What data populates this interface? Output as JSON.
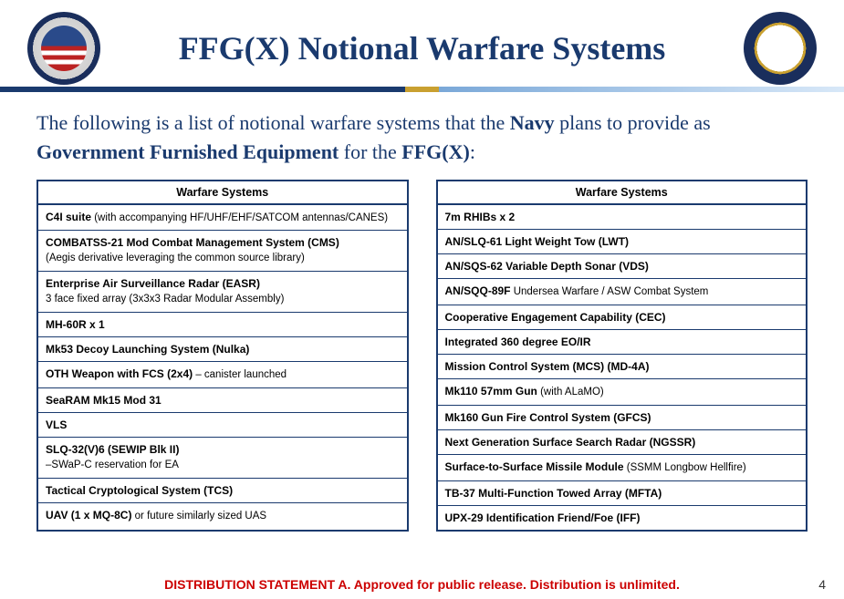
{
  "header": {
    "title": "FFG(X) Notional Warfare Systems",
    "left_seal": "PEO LCS",
    "right_seal": "PMS 515"
  },
  "intro": {
    "line1_prefix": "The following is a list of notional warfare systems that the ",
    "navy": "Navy",
    "line1_mid": " plans to provide as ",
    "gfe": "Government Furnished Equipment",
    "line1_mid2": " for the ",
    "ffgx": "FFG(X)",
    "line1_suffix": ":"
  },
  "left_table": {
    "header": "Warfare Systems",
    "rows": [
      {
        "bold": "C4I suite",
        "sub": " (with accompanying HF/UHF/EHF/SATCOM antennas/CANES)"
      },
      {
        "bold": "COMBATSS-21 Mod Combat Management System (CMS)",
        "sub_line2": "(Aegis derivative leveraging the common source library)"
      },
      {
        "bold": "Enterprise Air Surveillance Radar (EASR)",
        "sub_line2": "3 face fixed array (3x3x3 Radar Modular Assembly)"
      },
      {
        "bold": "MH-60R x 1"
      },
      {
        "bold": "Mk53 Decoy Launching System (Nulka)"
      },
      {
        "bold": "OTH Weapon with FCS (2x4)",
        "sub": " – canister launched"
      },
      {
        "bold": "SeaRAM Mk15 Mod 31"
      },
      {
        "bold": "VLS"
      },
      {
        "bold": "SLQ-32(V)6 (SEWIP Blk II)",
        "sub_line2": "–SWaP-C reservation for EA"
      },
      {
        "bold": "Tactical Cryptological System (TCS)"
      },
      {
        "bold": "UAV (1 x MQ-8C)",
        "sub": " or future similarly sized UAS"
      }
    ]
  },
  "right_table": {
    "header": "Warfare Systems",
    "rows": [
      {
        "bold": "7m RHIBs x 2"
      },
      {
        "bold": "AN/SLQ-61 Light Weight Tow (LWT)"
      },
      {
        "bold": "AN/SQS-62 Variable Depth Sonar (VDS)"
      },
      {
        "bold": "AN/SQQ-89F",
        "sub": " Undersea Warfare / ASW Combat System"
      },
      {
        "bold": "Cooperative Engagement Capability (CEC)"
      },
      {
        "bold": "Integrated 360 degree EO/IR"
      },
      {
        "bold": "Mission Control System (MCS) (MD-4A)"
      },
      {
        "bold": "Mk110 57mm Gun",
        "sub": " (with ALaMO)"
      },
      {
        "bold": "Mk160 Gun Fire Control System (GFCS)"
      },
      {
        "bold": "Next Generation Surface Search Radar (NGSSR)"
      },
      {
        "bold": "Surface-to-Surface Missile Module",
        "sub": " (SSMM Longbow Hellfire)"
      },
      {
        "bold": "TB-37 Multi-Function Towed Array (MFTA)"
      },
      {
        "bold": "UPX-29 Identification Friend/Foe (IFF)"
      }
    ]
  },
  "footer": {
    "distribution": "DISTRIBUTION STATEMENT A. Approved for public release. Distribution is unlimited.",
    "page": "4"
  }
}
